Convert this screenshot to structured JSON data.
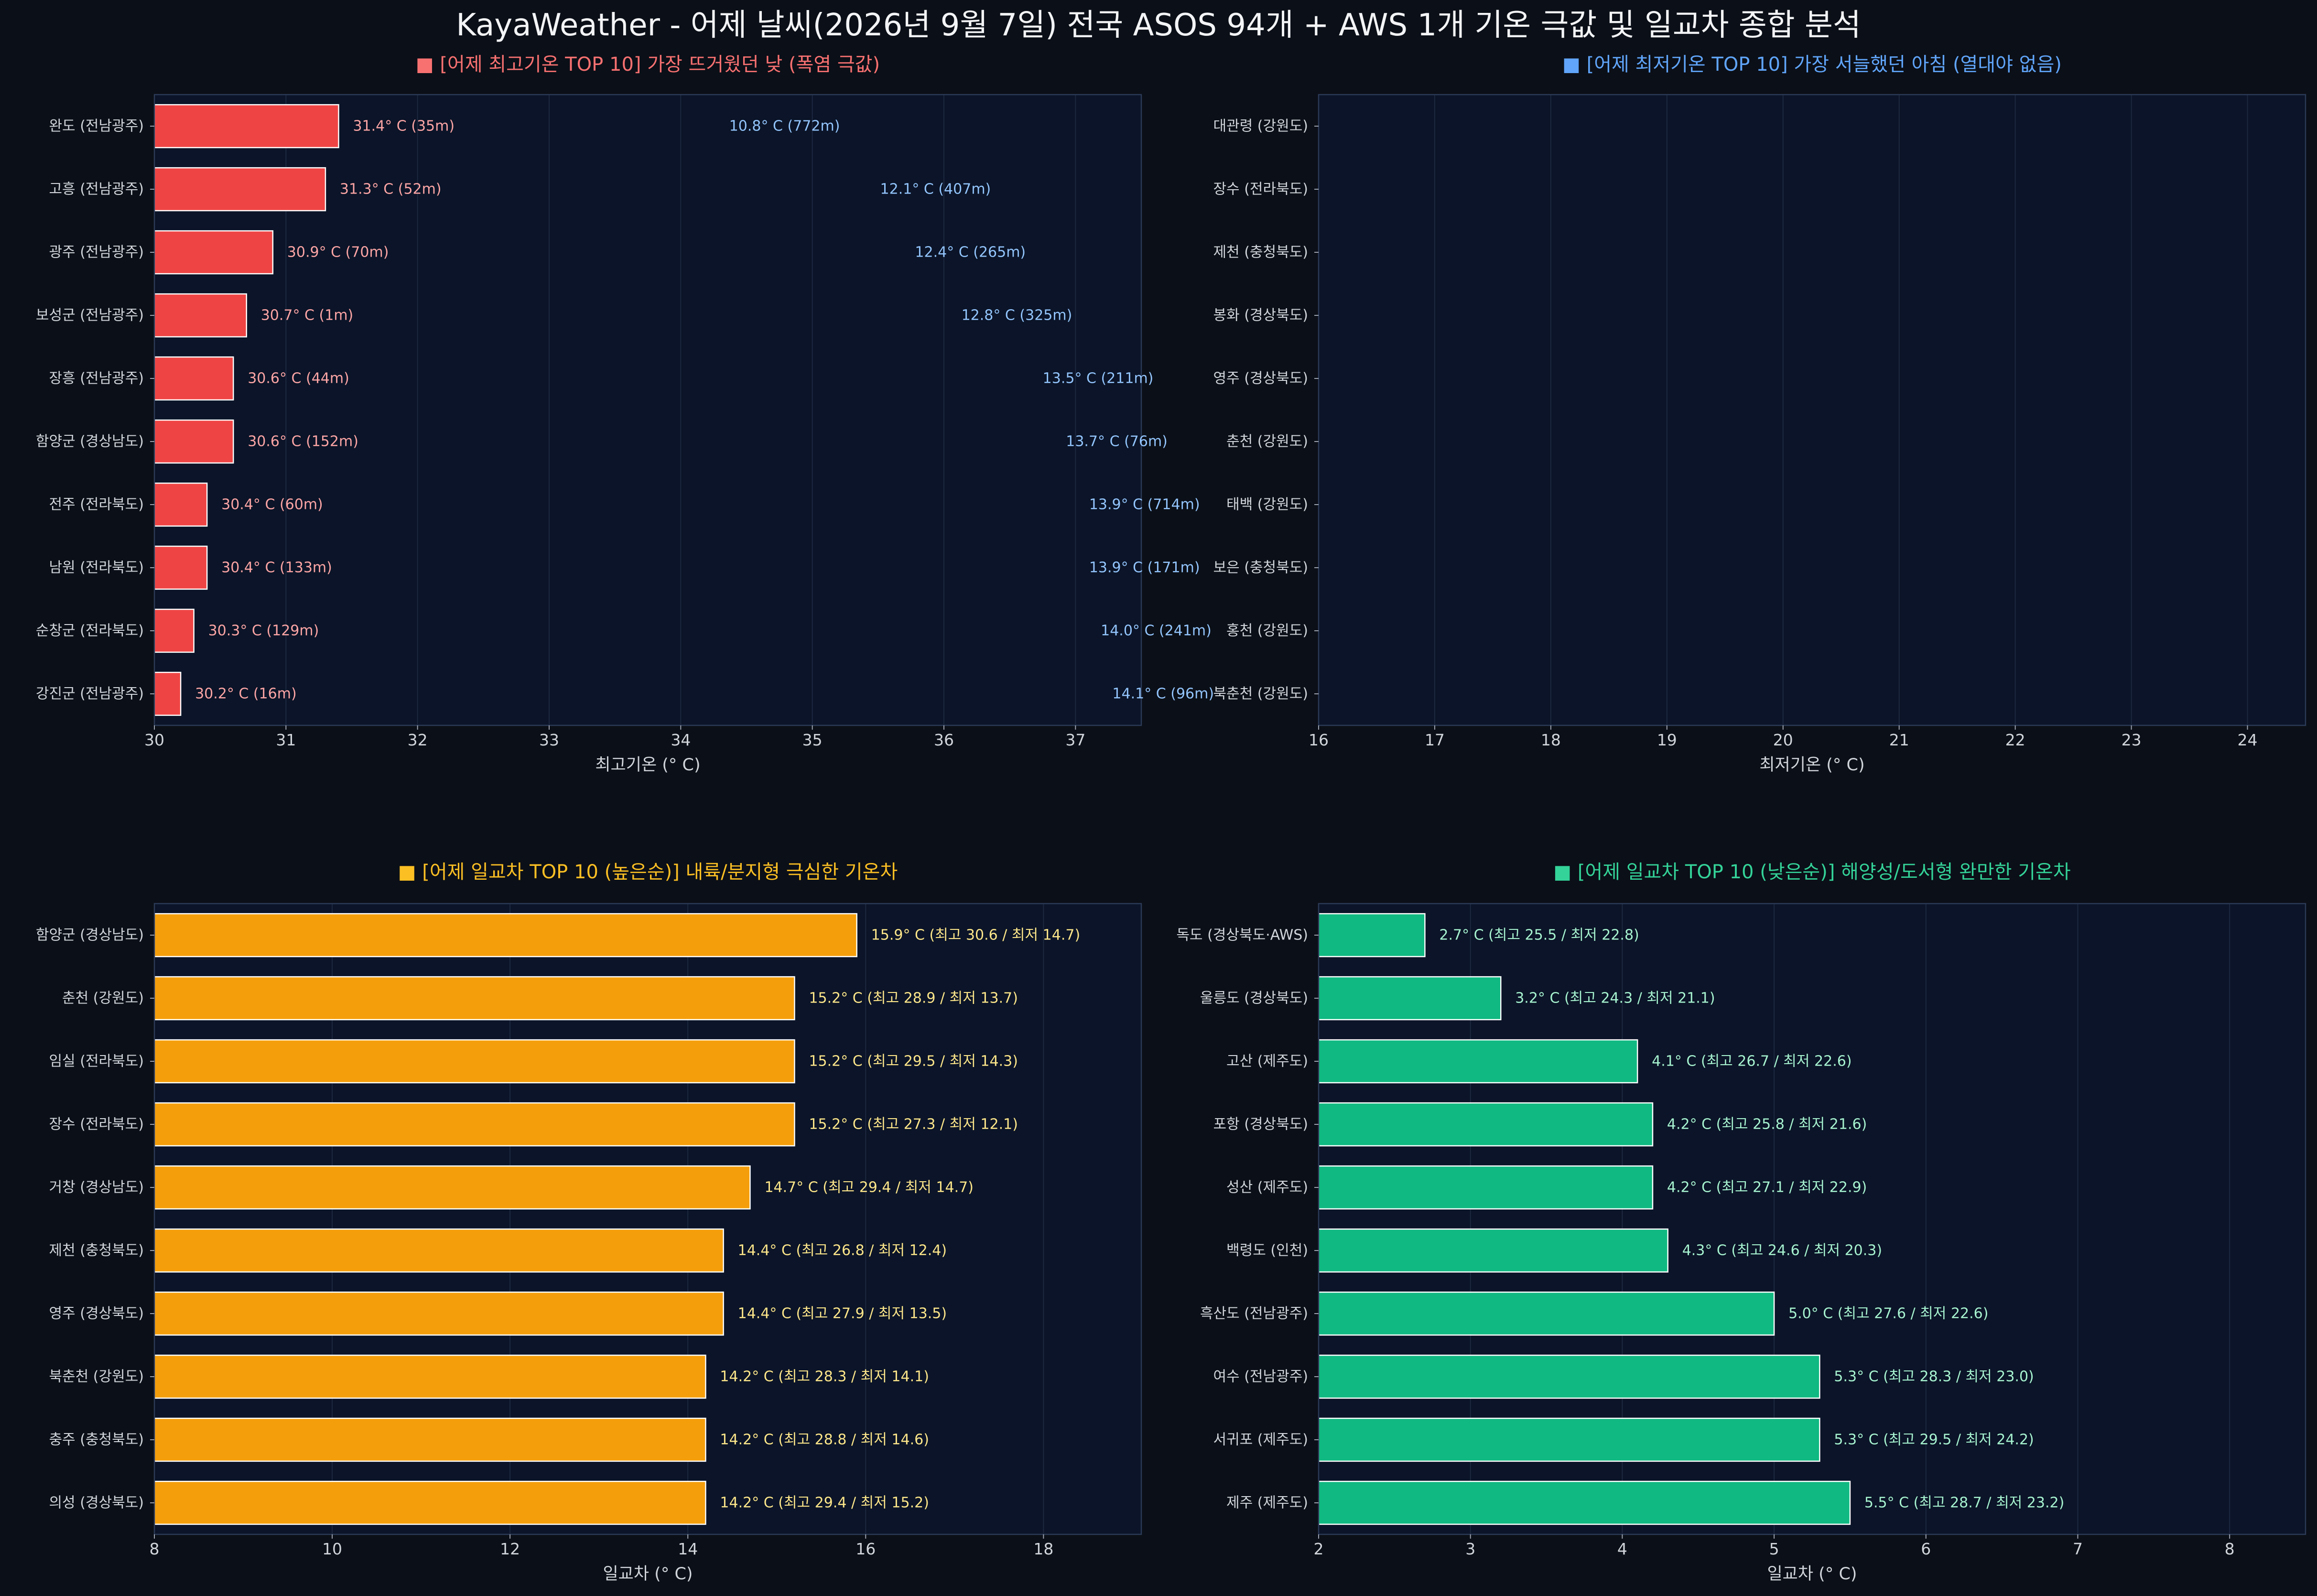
{
  "title": "KayaWeather - 어제 날씨(2026년 9월 7일) 전국 ASOS 94개 + AWS 1개 기온 극값 및 일교차 종합 분석",
  "colors": {
    "background": "#0b0f17",
    "plot_background": "#0b1428",
    "plot_border": "#2c3a57",
    "grid": "#1d2840",
    "bar_edge": "#ffffff"
  },
  "chart_data": [
    {
      "id": "max-temp",
      "type": "bar",
      "orientation": "horizontal",
      "title": "■ [어제 최고기온 TOP 10] 가장 뜨거웠던 낮 (폭염 극값)",
      "title_color": "#f87171",
      "bar_color": "#ef4444",
      "label_color": "#fca5a5",
      "xlabel": "최고기온 (° C)",
      "xlim": [
        30,
        37.5
      ],
      "xticks": [
        30,
        31,
        32,
        33,
        34,
        35,
        36,
        37
      ],
      "grid": true,
      "categories": [
        "완도 (전남광주)",
        "고흥 (전남광주)",
        "광주 (전남광주)",
        "보성군 (전남광주)",
        "장흥 (전남광주)",
        "함양군 (경상남도)",
        "전주 (전라북도)",
        "남원 (전라북도)",
        "순창군 (전라북도)",
        "강진군 (전남광주)"
      ],
      "values": [
        31.4,
        31.3,
        30.9,
        30.7,
        30.6,
        30.6,
        30.4,
        30.4,
        30.3,
        30.2
      ],
      "labels": [
        "31.4° C (35m)",
        "31.3° C (52m)",
        "30.9° C (70m)",
        "30.7° C (1m)",
        "30.6° C (44m)",
        "30.6° C (152m)",
        "30.4° C (60m)",
        "30.4° C (133m)",
        "30.3° C (129m)",
        "30.2° C (16m)"
      ]
    },
    {
      "id": "min-temp",
      "type": "bar",
      "orientation": "horizontal",
      "title": "■ [어제 최저기온 TOP 10] 가장 서늘했던 아침 (열대야 없음)",
      "title_color": "#60a5fa",
      "bar_color": "#3b82f6",
      "label_color": "#93c5fd",
      "xlabel": "최저기온 (° C)",
      "xlim": [
        16,
        24.5
      ],
      "xticks": [
        16,
        17,
        18,
        19,
        20,
        21,
        22,
        23,
        24
      ],
      "grid": true,
      "categories": [
        "대관령 (강원도)",
        "장수 (전라북도)",
        "제천 (충청북도)",
        "봉화 (경상북도)",
        "영주 (경상북도)",
        "춘천 (강원도)",
        "태백 (강원도)",
        "보은 (충청북도)",
        "홍천 (강원도)",
        "북춘천 (강원도)"
      ],
      "values": [
        10.8,
        12.1,
        12.4,
        12.8,
        13.5,
        13.7,
        13.9,
        13.9,
        14.0,
        14.1
      ],
      "labels": [
        "10.8° C (772m)",
        "12.1° C (407m)",
        "12.4° C (265m)",
        "12.8° C (325m)",
        "13.5° C (211m)",
        "13.7° C (76m)",
        "13.9° C (714m)",
        "13.9° C (171m)",
        "14.0° C (241m)",
        "14.1° C (96m)"
      ]
    },
    {
      "id": "range-high",
      "type": "bar",
      "orientation": "horizontal",
      "title": "■ [어제 일교차 TOP 10 (높은순)] 내륙/분지형 극심한 기온차",
      "title_color": "#fbbf24",
      "bar_color": "#f59e0b",
      "label_color": "#fde68a",
      "xlabel": "일교차 (° C)",
      "xlim": [
        8,
        19.1
      ],
      "xticks": [
        8,
        10,
        12,
        14,
        16,
        18
      ],
      "grid": true,
      "categories": [
        "함양군 (경상남도)",
        "춘천 (강원도)",
        "임실 (전라북도)",
        "장수 (전라북도)",
        "거창 (경상남도)",
        "제천 (충청북도)",
        "영주 (경상북도)",
        "북춘천 (강원도)",
        "충주 (충청북도)",
        "의성 (경상북도)"
      ],
      "values": [
        15.9,
        15.2,
        15.2,
        15.2,
        14.7,
        14.4,
        14.4,
        14.2,
        14.2,
        14.2
      ],
      "labels": [
        "15.9° C (최고 30.6 / 최저 14.7)",
        "15.2° C (최고 28.9 / 최저 13.7)",
        "15.2° C (최고 29.5 / 최저 14.3)",
        "15.2° C (최고 27.3 / 최저 12.1)",
        "14.7° C (최고 29.4 / 최저 14.7)",
        "14.4° C (최고 26.8 / 최저 12.4)",
        "14.4° C (최고 27.9 / 최저 13.5)",
        "14.2° C (최고 28.3 / 최저 14.1)",
        "14.2° C (최고 28.8 / 최저 14.6)",
        "14.2° C (최고 29.4 / 최저 15.2)"
      ]
    },
    {
      "id": "range-low",
      "type": "bar",
      "orientation": "horizontal",
      "title": "■ [어제 일교차 TOP 10 (낮은순)] 해양성/도서형 완만한 기온차",
      "title_color": "#34d399",
      "bar_color": "#10b981",
      "label_color": "#a7f3d0",
      "xlabel": "일교차 (° C)",
      "xlim": [
        2,
        8.5
      ],
      "xticks": [
        2,
        3,
        4,
        5,
        6,
        7,
        8
      ],
      "grid": true,
      "categories": [
        "독도 (경상북도·AWS)",
        "울릉도 (경상북도)",
        "고산 (제주도)",
        "포항 (경상북도)",
        "성산 (제주도)",
        "백령도 (인천)",
        "흑산도 (전남광주)",
        "여수 (전남광주)",
        "서귀포 (제주도)",
        "제주 (제주도)"
      ],
      "values": [
        2.7,
        3.2,
        4.1,
        4.2,
        4.2,
        4.3,
        5.0,
        5.3,
        5.3,
        5.5
      ],
      "labels": [
        "2.7° C (최고 25.5 / 최저 22.8)",
        "3.2° C (최고 24.3 / 최저 21.1)",
        "4.1° C (최고 26.7 / 최저 22.6)",
        "4.2° C (최고 25.8 / 최저 21.6)",
        "4.2° C (최고 27.1 / 최저 22.9)",
        "4.3° C (최고 24.6 / 최저 20.3)",
        "5.0° C (최고 27.6 / 최저 22.6)",
        "5.3° C (최고 28.3 / 최저 23.0)",
        "5.3° C (최고 29.5 / 최저 24.2)",
        "5.5° C (최고 28.7 / 최저 23.2)"
      ]
    }
  ]
}
